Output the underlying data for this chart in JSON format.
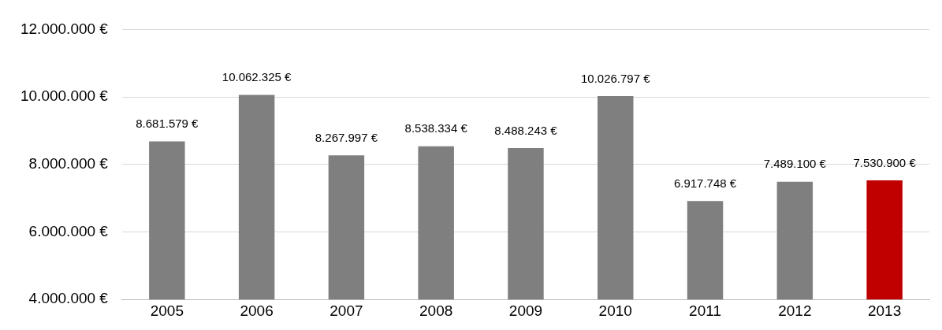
{
  "chart_data": {
    "type": "bar",
    "categories": [
      "2005",
      "2006",
      "2007",
      "2008",
      "2009",
      "2010",
      "2011",
      "2012",
      "2013"
    ],
    "values": [
      8681579,
      10062325,
      8267997,
      8538334,
      8488243,
      10026797,
      6917748,
      7489100,
      7530900
    ],
    "colors": [
      "#7f7f7f",
      "#7f7f7f",
      "#7f7f7f",
      "#7f7f7f",
      "#7f7f7f",
      "#7f7f7f",
      "#7f7f7f",
      "#7f7f7f",
      "#c00000"
    ],
    "value_labels": [
      "8.681.579 €",
      "10.062.325 €",
      "8.267.997 €",
      "8.538.334 €",
      "8.488.243 €",
      "10.026.797 €",
      "6.917.748 €",
      "7.489.100 €",
      "7.530.900 €"
    ],
    "ylim": [
      4000000,
      12000000
    ],
    "yticks": [
      {
        "value": 4000000,
        "label": "4.000.000 €"
      },
      {
        "value": 6000000,
        "label": "6.000.000 €"
      },
      {
        "value": 8000000,
        "label": "8.000.000 €"
      },
      {
        "value": 10000000,
        "label": "10.000.000 €"
      },
      {
        "value": 12000000,
        "label": "12.000.000 €"
      }
    ],
    "grid": "y",
    "legend": false
  }
}
